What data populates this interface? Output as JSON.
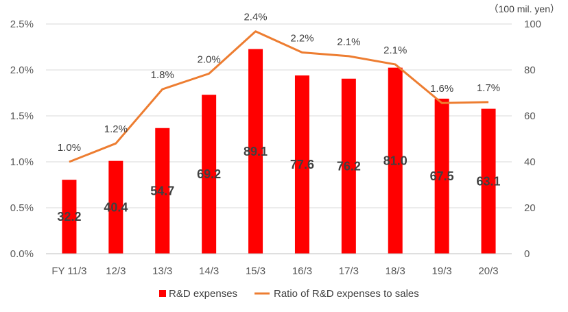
{
  "chart_data": {
    "type": "bar",
    "unit_label": "（100 mil. yen）",
    "categories": [
      "FY 11/3",
      "12/3",
      "13/3",
      "14/3",
      "15/3",
      "16/3",
      "17/3",
      "18/3",
      "19/3",
      "20/3"
    ],
    "series": [
      {
        "name": "R&D expenses",
        "type": "bar",
        "axis": "right",
        "color": "#ff0000",
        "values": [
          32.2,
          40.4,
          54.7,
          69.2,
          89.1,
          77.6,
          76.2,
          81.0,
          67.5,
          63.1
        ],
        "value_labels": [
          "32.2",
          "40.4",
          "54.7",
          "69.2",
          "89.1",
          "77.6",
          "76.2",
          "81.0",
          "67.5",
          "63.1"
        ]
      },
      {
        "name": "Ratio of R&D expenses to sales",
        "type": "line",
        "axis": "left",
        "color": "#ed7d31",
        "values": [
          1.0,
          1.2,
          1.8,
          2.0,
          2.4,
          2.2,
          2.1,
          2.1,
          1.6,
          1.7
        ],
        "plotted_values": [
          1.0,
          1.2,
          1.79,
          1.96,
          2.42,
          2.19,
          2.15,
          2.06,
          1.64,
          1.65
        ],
        "value_labels": [
          "1.0%",
          "1.2%",
          "1.8%",
          "2.0%",
          "2.4%",
          "2.2%",
          "2.1%",
          "2.1%",
          "1.6%",
          "1.7%"
        ]
      }
    ],
    "left_axis": {
      "ylim": [
        0,
        2.5
      ],
      "ticks": [
        "0.0%",
        "0.5%",
        "1.0%",
        "1.5%",
        "2.0%",
        "2.5%"
      ]
    },
    "right_axis": {
      "ylim": [
        0,
        100
      ],
      "ticks": [
        "0",
        "20",
        "40",
        "60",
        "80",
        "100"
      ]
    },
    "grid": true,
    "legend": "bottom"
  }
}
